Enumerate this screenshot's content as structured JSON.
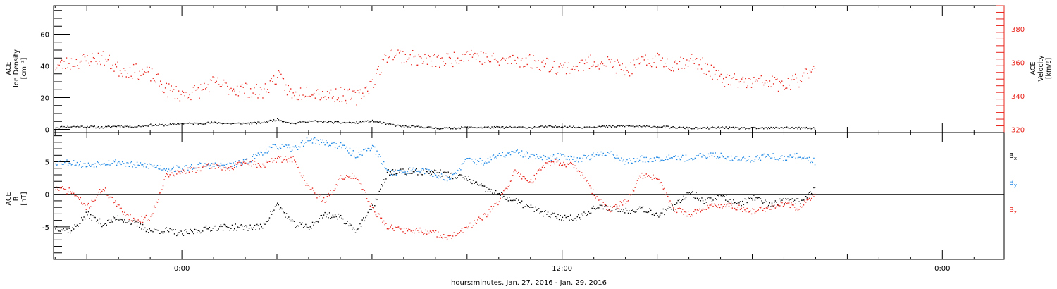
{
  "chart_data": [
    {
      "panel": "top",
      "type": "scatter",
      "ylabel_left": [
        "ACE",
        "Ion Density",
        "[cm⁻³]"
      ],
      "ylabel_right": [
        "ACE",
        "Velocity",
        "[km/s]"
      ],
      "y_left_lim": [
        -2,
        78
      ],
      "y_left_ticks": [
        "0",
        "20",
        "40",
        "60"
      ],
      "y_right_lim": [
        318,
        394
      ],
      "y_right_ticks": [
        "320",
        "340",
        "360",
        "380"
      ],
      "colors": {
        "density": "#000000",
        "velocity": "#e8241c"
      },
      "series": [
        {
          "axis": "left",
          "color": "#000000",
          "x": [
            -4.0,
            -3.5,
            -3.0,
            -2.5,
            -2.0,
            -1.5,
            -1.0,
            -0.5,
            0.0,
            0.5,
            1.0,
            1.5,
            2.0,
            2.5,
            3.0,
            3.5,
            4.0,
            4.5,
            5.0,
            5.5,
            6.0,
            6.5,
            7.0,
            7.5,
            8.0,
            8.5,
            9.0,
            9.5,
            10.0,
            10.5,
            11.0,
            11.5,
            12.0,
            12.5,
            13.0,
            13.5,
            14.0,
            14.5,
            15.0,
            15.5,
            16.0,
            16.5,
            17.0,
            17.5,
            18.0,
            18.5,
            19.0,
            19.5,
            20.0
          ],
          "y": [
            1.5,
            2.0,
            2.0,
            1.5,
            2.5,
            2.0,
            3.0,
            3.0,
            4.0,
            4.0,
            4.5,
            4.0,
            4.0,
            4.5,
            6.5,
            4.0,
            5.5,
            5.0,
            4.5,
            4.5,
            5.5,
            3.5,
            2.0,
            2.0,
            1.0,
            1.0,
            1.5,
            1.5,
            1.5,
            1.5,
            1.5,
            2.0,
            2.0,
            1.5,
            2.0,
            2.0,
            2.5,
            2.0,
            2.0,
            1.5,
            1.0,
            1.0,
            1.5,
            1.0,
            1.0,
            1.0,
            1.5,
            1.0,
            1.0
          ]
        },
        {
          "axis": "right",
          "color": "#e8241c",
          "x": [
            -4.0,
            -3.5,
            -3.0,
            -2.5,
            -2.0,
            -1.5,
            -1.0,
            -0.5,
            0.0,
            0.5,
            1.0,
            1.5,
            2.0,
            2.5,
            3.0,
            3.5,
            4.0,
            4.5,
            5.0,
            5.5,
            6.0,
            6.5,
            7.0,
            7.5,
            8.0,
            8.5,
            9.0,
            9.5,
            10.0,
            10.5,
            11.0,
            11.5,
            12.0,
            12.5,
            13.0,
            13.5,
            14.0,
            14.5,
            15.0,
            15.5,
            16.0,
            16.5,
            17.0,
            17.5,
            18.0,
            18.5,
            19.0,
            19.5,
            20.0
          ],
          "y": [
            358,
            360,
            362,
            363,
            356,
            355,
            353,
            344,
            341,
            343,
            348,
            345,
            344,
            342,
            352,
            340,
            344,
            341,
            341,
            339,
            348,
            366,
            364,
            362,
            361,
            362,
            366,
            363,
            361,
            362,
            361,
            359,
            357,
            358,
            361,
            360,
            355,
            360,
            362,
            359,
            362,
            358,
            350,
            349,
            348,
            349,
            346,
            350,
            360
          ]
        }
      ]
    },
    {
      "panel": "bottom",
      "type": "scatter",
      "ylabel_left": [
        "ACE",
        "B",
        "[nT]"
      ],
      "ylim": [
        -10,
        9.5
      ],
      "y_ticks": [
        "-5",
        "0",
        "5"
      ],
      "zero_line": true,
      "x_tick_labels": [
        "0:00",
        "12:00",
        "0:00"
      ],
      "x_tick_hours": [
        0,
        12,
        24
      ],
      "xlim": [
        -4.05,
        25.95
      ],
      "xlabel": "hours:minutes, Jan. 27, 2016 - Jan. 29, 2016",
      "legend": [
        {
          "base": "B",
          "sub": "x",
          "color": "#000000"
        },
        {
          "base": "B",
          "sub": "y",
          "color": "#1e88e5"
        },
        {
          "base": "B",
          "sub": "z",
          "color": "#e8241c"
        }
      ],
      "series": [
        {
          "name": "Bx",
          "color": "#000000",
          "x": [
            -4.0,
            -3.5,
            -3.0,
            -2.5,
            -2.0,
            -1.5,
            -1.0,
            -0.5,
            0.0,
            0.5,
            1.0,
            1.5,
            2.0,
            2.5,
            3.0,
            3.5,
            4.0,
            4.5,
            5.0,
            5.5,
            6.0,
            6.5,
            7.0,
            7.5,
            8.0,
            8.5,
            9.0,
            9.5,
            10.0,
            10.5,
            11.0,
            11.5,
            12.0,
            12.5,
            13.0,
            13.5,
            14.0,
            14.5,
            15.0,
            15.5,
            16.0,
            16.5,
            17.0,
            17.5,
            18.0,
            18.5,
            19.0,
            19.5,
            20.0
          ],
          "y": [
            -5.0,
            -5.5,
            -3.0,
            -4.5,
            -3.5,
            -4.5,
            -5.5,
            -5.5,
            -6.0,
            -5.5,
            -5.0,
            -5.0,
            -5.0,
            -5.0,
            -1.5,
            -4.5,
            -5.0,
            -3.0,
            -3.5,
            -5.5,
            -2.0,
            3.5,
            3.5,
            3.5,
            3.5,
            3.0,
            2.5,
            1.0,
            0.0,
            -1.0,
            -2.0,
            -3.0,
            -3.5,
            -3.5,
            -2.0,
            -2.0,
            -2.5,
            -2.0,
            -3.0,
            -2.0,
            0.5,
            -1.0,
            0.0,
            -1.5,
            -0.5,
            -1.5,
            -1.0,
            -1.0,
            1.0
          ]
        },
        {
          "name": "By",
          "color": "#1e88e5",
          "x": [
            -4.0,
            -3.5,
            -3.0,
            -2.5,
            -2.0,
            -1.5,
            -1.0,
            -0.5,
            0.0,
            0.5,
            1.0,
            1.5,
            2.0,
            2.5,
            3.0,
            3.5,
            4.0,
            4.5,
            5.0,
            5.5,
            6.0,
            6.5,
            7.0,
            7.5,
            8.0,
            8.5,
            9.0,
            9.5,
            10.0,
            10.5,
            11.0,
            11.5,
            12.0,
            12.5,
            13.0,
            13.5,
            14.0,
            14.5,
            15.0,
            15.5,
            16.0,
            16.5,
            17.0,
            17.5,
            18.0,
            18.5,
            19.0,
            19.5,
            20.0
          ],
          "y": [
            5.0,
            5.0,
            4.5,
            5.0,
            5.0,
            4.5,
            4.5,
            4.0,
            4.0,
            4.5,
            4.5,
            4.5,
            5.0,
            6.5,
            7.5,
            7.0,
            8.5,
            8.0,
            7.5,
            6.0,
            7.5,
            3.5,
            3.5,
            4.0,
            3.0,
            2.5,
            5.5,
            5.0,
            6.0,
            6.5,
            6.0,
            5.5,
            6.0,
            5.5,
            6.0,
            6.5,
            5.0,
            5.5,
            5.5,
            6.0,
            5.5,
            6.0,
            6.0,
            5.5,
            5.5,
            6.0,
            5.5,
            6.0,
            5.0
          ]
        },
        {
          "name": "Bz",
          "color": "#e8241c",
          "x": [
            -4.0,
            -3.5,
            -3.0,
            -2.5,
            -2.0,
            -1.5,
            -1.0,
            -0.5,
            0.0,
            0.5,
            1.0,
            1.5,
            2.0,
            2.5,
            3.0,
            3.5,
            4.0,
            4.5,
            5.0,
            5.5,
            6.0,
            6.5,
            7.0,
            7.5,
            8.0,
            8.5,
            9.0,
            9.5,
            10.0,
            10.5,
            11.0,
            11.5,
            12.0,
            12.5,
            13.0,
            13.5,
            14.0,
            14.5,
            15.0,
            15.5,
            16.0,
            16.5,
            17.0,
            17.5,
            18.0,
            18.5,
            19.0,
            19.5,
            20.0
          ],
          "y": [
            1.0,
            0.5,
            -2.0,
            1.0,
            -2.0,
            -4.0,
            -3.5,
            3.0,
            3.5,
            4.0,
            4.5,
            4.0,
            5.0,
            4.5,
            5.5,
            5.5,
            1.0,
            -1.0,
            2.5,
            3.0,
            -2.0,
            -5.0,
            -5.5,
            -5.5,
            -6.0,
            -6.5,
            -5.0,
            -3.5,
            -1.0,
            3.5,
            2.0,
            5.0,
            5.0,
            4.0,
            0.0,
            -2.5,
            -1.0,
            3.0,
            2.5,
            -2.0,
            -3.0,
            -2.0,
            -1.5,
            -2.0,
            -2.5,
            -2.0,
            -1.5,
            -2.0,
            0.0
          ]
        }
      ]
    }
  ]
}
